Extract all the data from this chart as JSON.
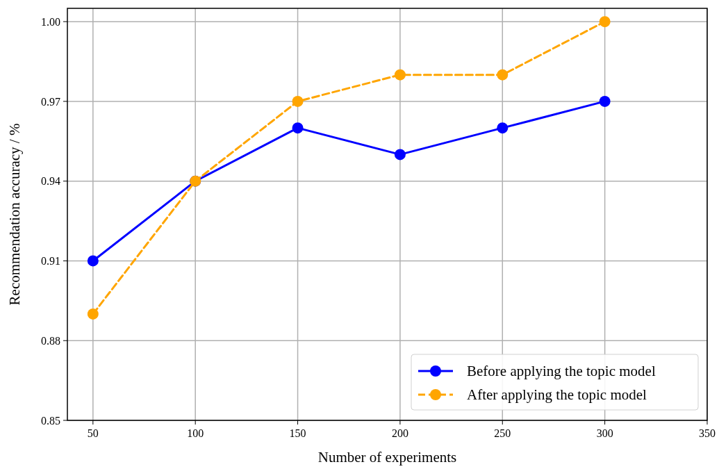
{
  "chart_data": {
    "type": "line",
    "xlabel": "Number of experiments",
    "ylabel": "Recommendation accuracy / %",
    "x": [
      50,
      100,
      150,
      200,
      250,
      300
    ],
    "series": [
      {
        "name": "Before applying the topic model",
        "color": "#0000ff",
        "line_style": "solid",
        "values": [
          0.91,
          0.94,
          0.96,
          0.95,
          0.96,
          0.97
        ]
      },
      {
        "name": "After applying the topic model",
        "color": "#ffa500",
        "line_style": "dashed",
        "values": [
          0.89,
          0.94,
          0.97,
          0.98,
          0.98,
          1.0
        ]
      }
    ],
    "xlim": [
      37.5,
      350
    ],
    "xticks": [
      50,
      100,
      150,
      200,
      250,
      300,
      350
    ],
    "ylim": [
      0.85,
      1.005
    ],
    "yticks": [
      0.85,
      0.88,
      0.91,
      0.94,
      0.97,
      {
        "value": 1,
        "label": "1.00"
      }
    ],
    "grid": true,
    "legend": "bottom right",
    "marker": "circle"
  }
}
